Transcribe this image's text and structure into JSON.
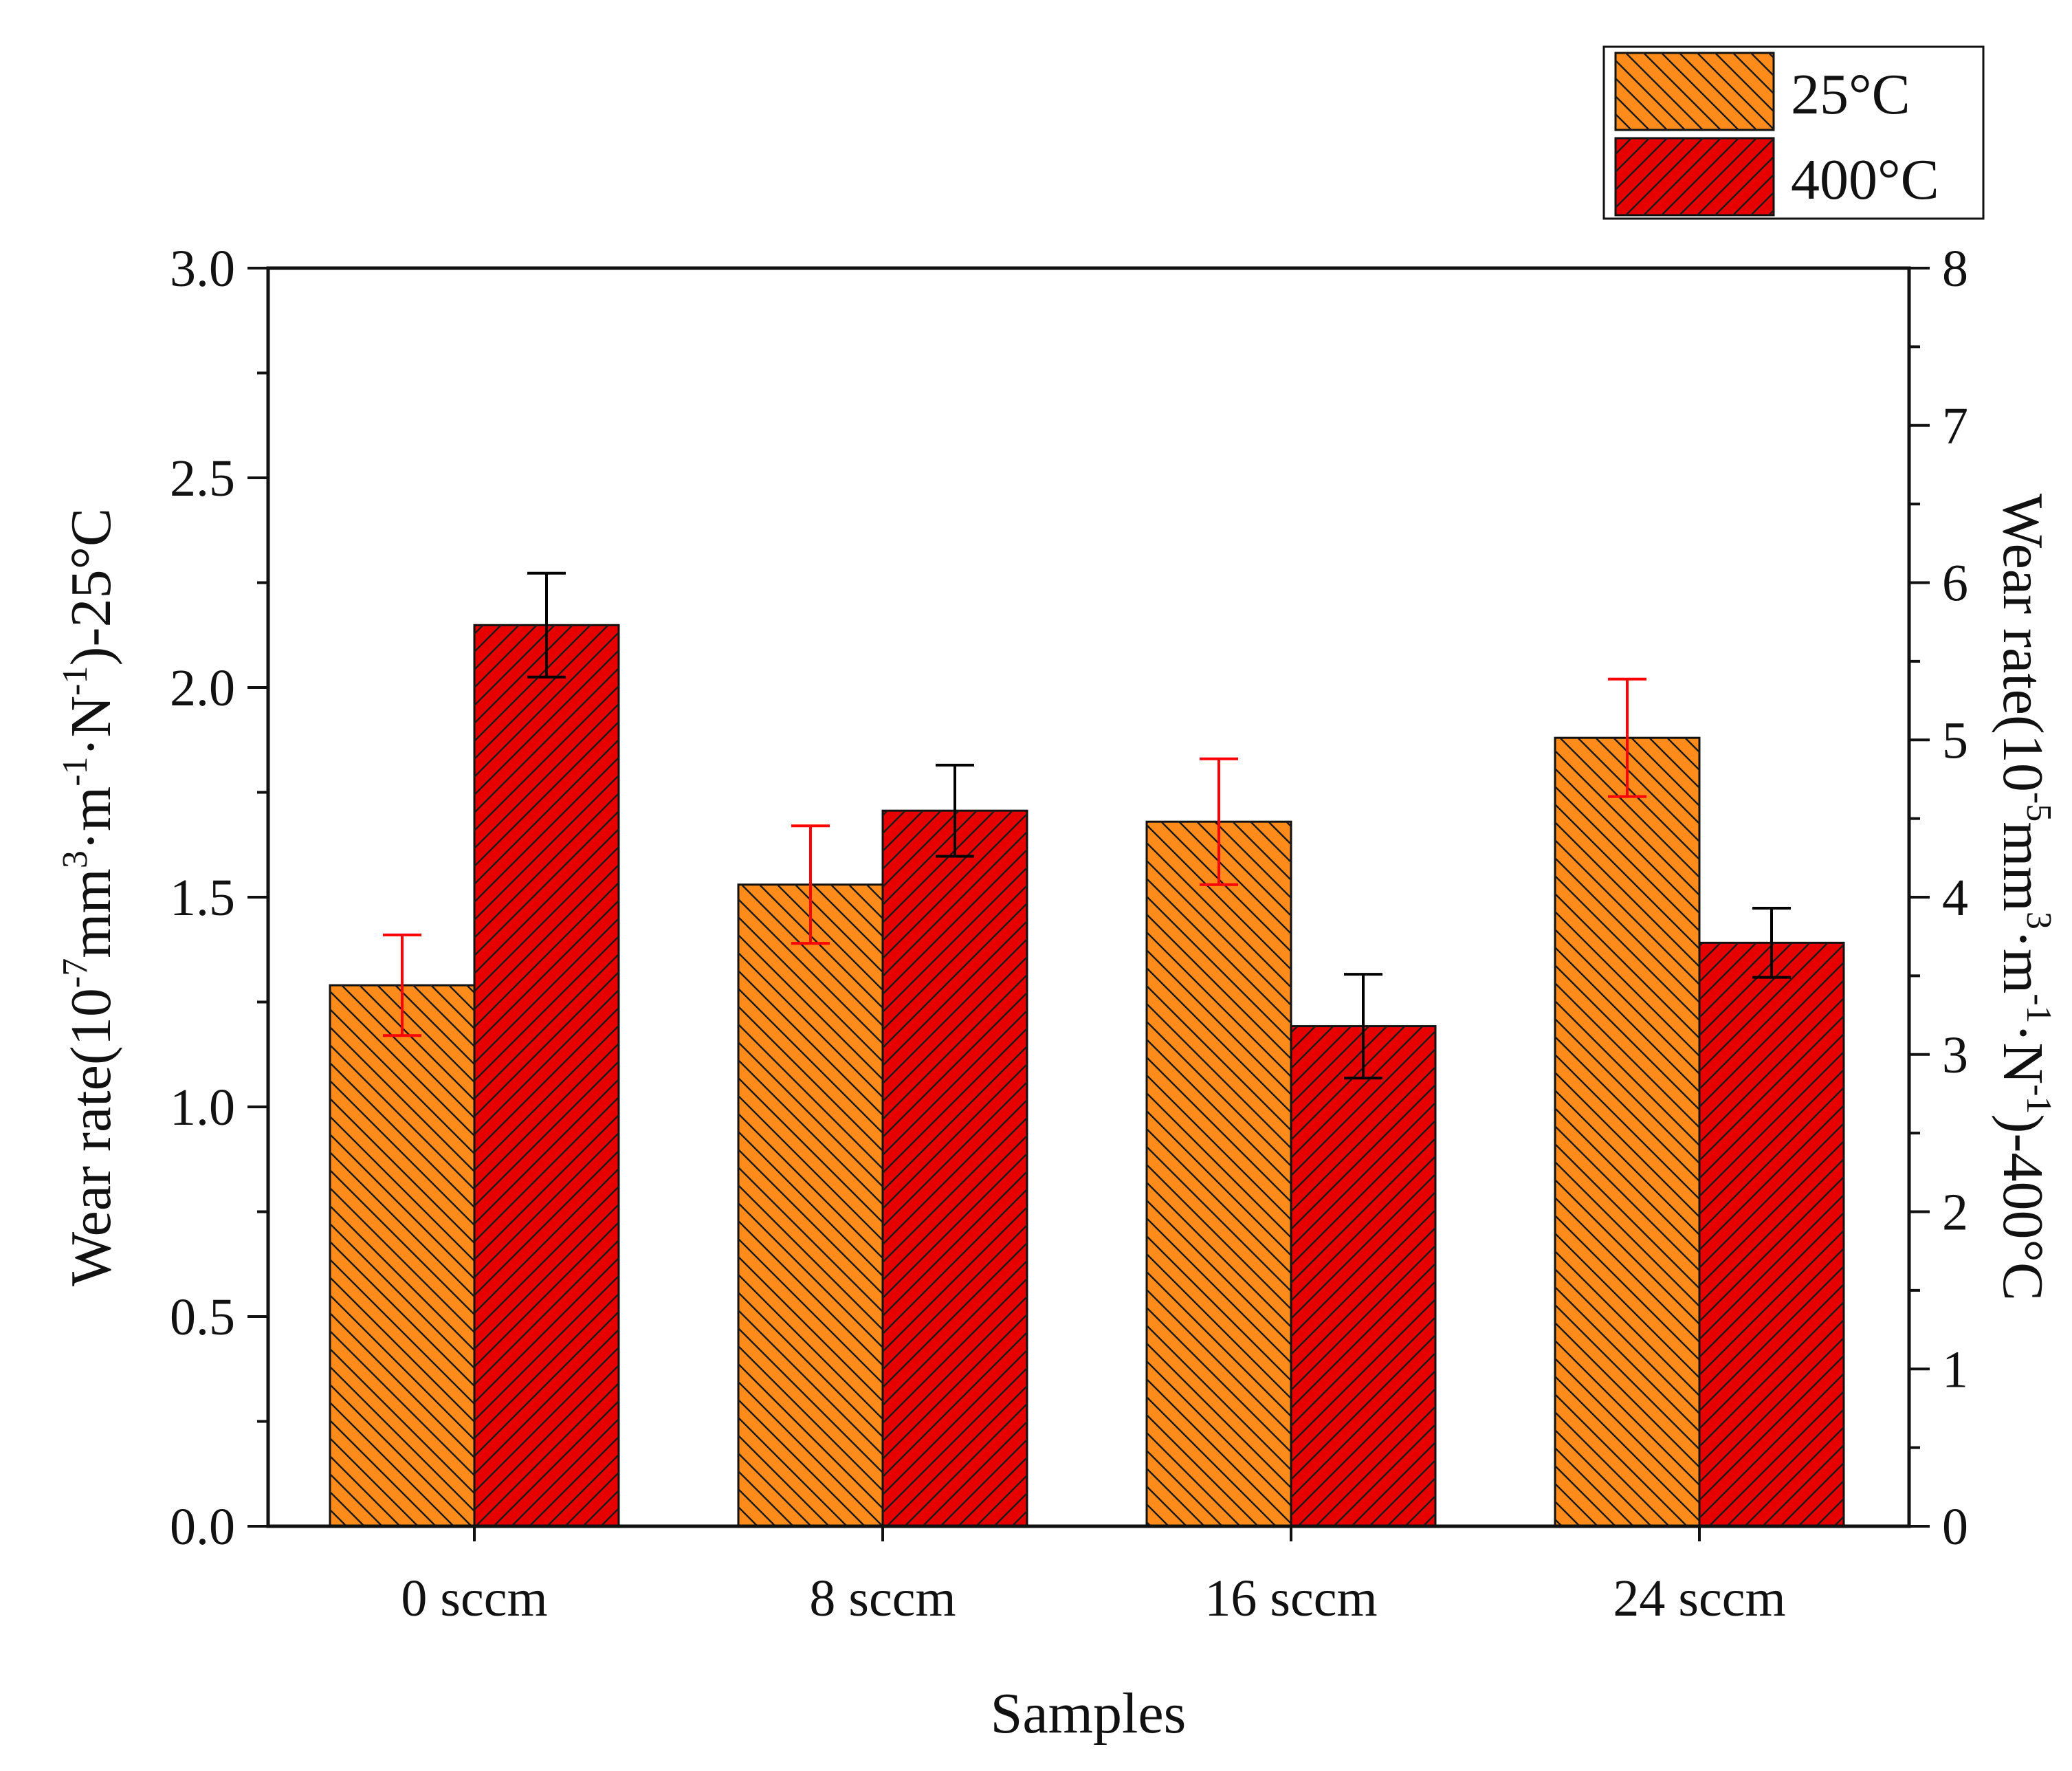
{
  "chart_data": {
    "type": "bar",
    "categories": [
      "0 sccm",
      "8 sccm",
      "16 sccm",
      "24 sccm"
    ],
    "xlabel": "Samples",
    "left_axis": {
      "range": [
        0,
        3.0
      ],
      "ticks": [
        "0.0",
        "0.5",
        "1.0",
        "1.5",
        "2.0",
        "2.5",
        "3.0"
      ],
      "label_parts": {
        "p1": "Wear rate(10",
        "s1": "-7",
        "p2": "mm",
        "s2": "3",
        "p3": "·m",
        "s3": "-1",
        "p4": "·N",
        "s4": "-1",
        "p5": ")-25°C"
      }
    },
    "right_axis": {
      "range": [
        0,
        8
      ],
      "ticks": [
        "0",
        "1",
        "2",
        "3",
        "4",
        "5",
        "6",
        "7",
        "8"
      ],
      "label_parts": {
        "p1": "Wear rate(10",
        "s1": "-5",
        "p2": "mm",
        "s2": "3",
        "p3": "·m",
        "s3": "-1",
        "p4": "·N",
        "s4": "-1",
        "p5": ")-400°C"
      }
    },
    "series": [
      {
        "name": "25°C",
        "axis": "left",
        "color": "#FF8C1A",
        "hatch": "backslash",
        "error_color": "#FF0000",
        "values": [
          1.29,
          1.53,
          1.68,
          1.88
        ],
        "errors": [
          0.12,
          0.14,
          0.15,
          0.14
        ]
      },
      {
        "name": "400°C",
        "axis": "right",
        "color": "#E60000",
        "hatch": "slash",
        "error_color": "#000000",
        "values": [
          5.73,
          4.55,
          3.18,
          3.71
        ],
        "errors": [
          0.33,
          0.29,
          0.33,
          0.22
        ]
      }
    ],
    "legend_position": "top-right"
  }
}
